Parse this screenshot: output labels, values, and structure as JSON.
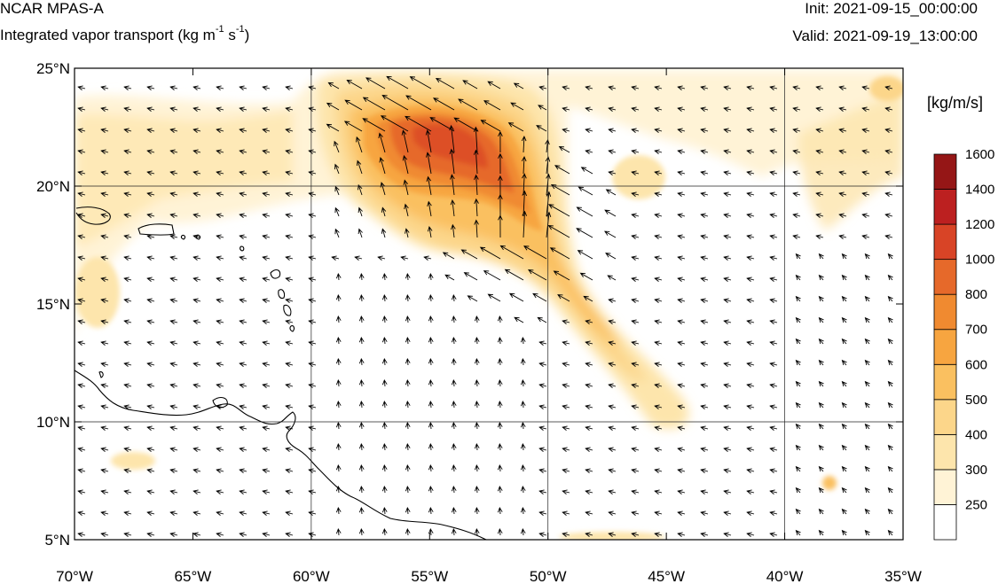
{
  "header": {
    "title": "NCAR MPAS-A",
    "subtitle_main": "Integrated vapor transport (kg m",
    "subtitle_exp1": "-1",
    "subtitle_mid": " s",
    "subtitle_exp2": "-1",
    "subtitle_end": ")",
    "init": "Init: 2021-09-15_00:00:00",
    "valid": "Valid: 2021-09-19_13:00:00"
  },
  "map": {
    "lon_range": [
      -70,
      -35
    ],
    "lat_range": [
      5,
      25
    ],
    "lon_ticks": [
      {
        "value": -70,
        "label": "70°W"
      },
      {
        "value": -65,
        "label": "65°W"
      },
      {
        "value": -60,
        "label": "60°W"
      },
      {
        "value": -55,
        "label": "55°W"
      },
      {
        "value": -50,
        "label": "50°W"
      },
      {
        "value": -45,
        "label": "45°W"
      },
      {
        "value": -40,
        "label": "40°W"
      },
      {
        "value": -35,
        "label": "35°W"
      }
    ],
    "lat_ticks": [
      {
        "value": 5,
        "label": "5°N"
      },
      {
        "value": 10,
        "label": "10°N"
      },
      {
        "value": 15,
        "label": "15°N"
      },
      {
        "value": 20,
        "label": "20°N"
      },
      {
        "value": 25,
        "label": "25°N"
      }
    ],
    "gridlines_every_deg": 10
  },
  "colorbar": {
    "unit_label": "[kg/m/s]",
    "levels": [
      "250",
      "300",
      "400",
      "500",
      "600",
      "700",
      "800",
      "1000",
      "1200",
      "1400",
      "1600"
    ],
    "colors": [
      "#ffffff",
      "#fff3d6",
      "#fde5ac",
      "#fcd68a",
      "#fac060",
      "#f7a540",
      "#f08a30",
      "#e6692a",
      "#d84426",
      "#bc2020",
      "#951616"
    ]
  }
}
